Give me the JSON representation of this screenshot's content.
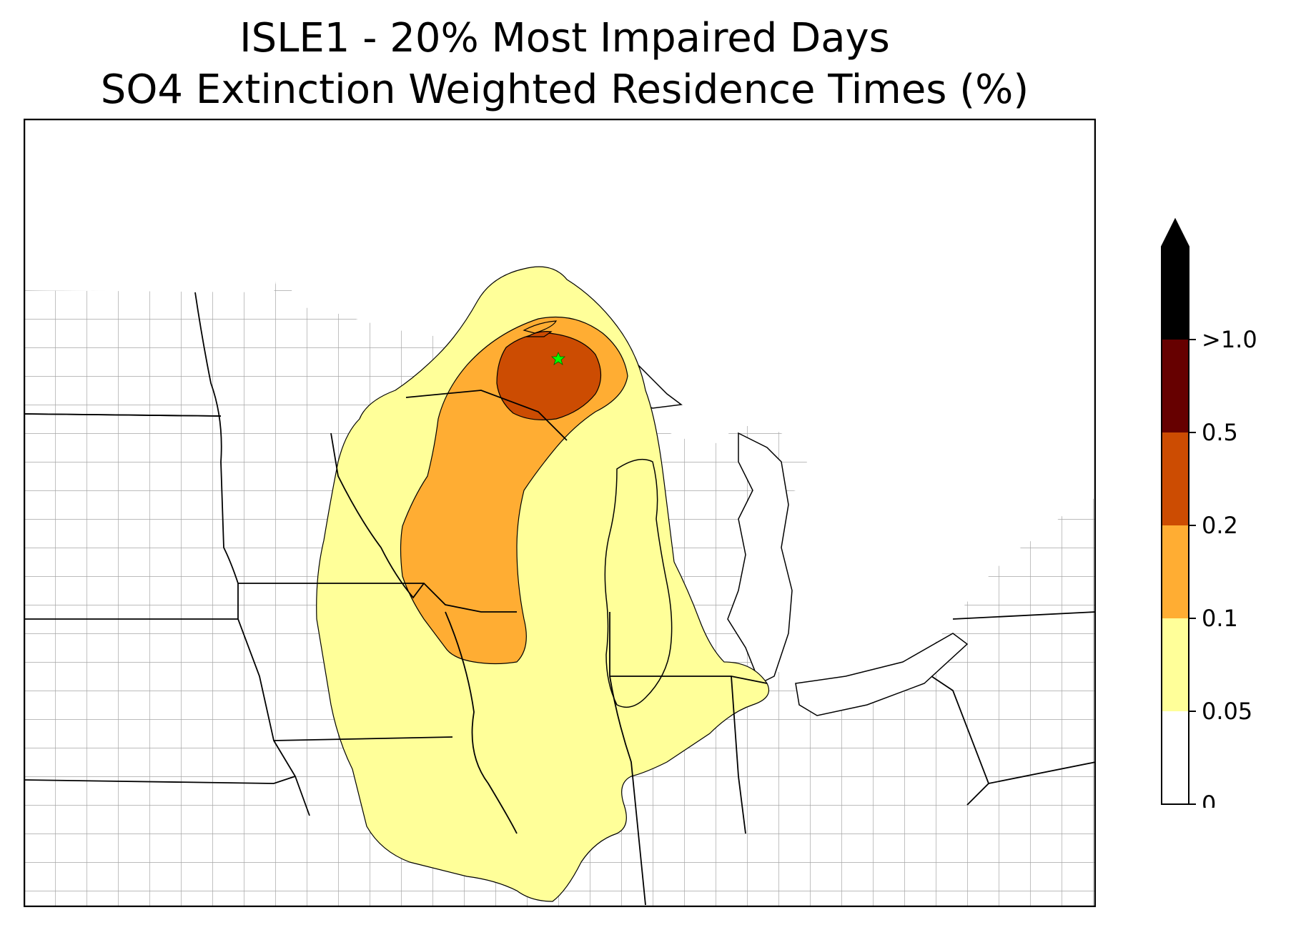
{
  "title": {
    "line1": "ISLE1 - 20% Most Impaired Days",
    "line2": "SO4 Extinction Weighted Residence Times (%)"
  },
  "map": {
    "receptor_marker": "green-star-icon",
    "county_line_color": "#a6a6a6",
    "state_line_color": "#000000"
  },
  "colorbar": {
    "extend": "max",
    "bins": [
      {
        "from": "0",
        "to": "0.05",
        "color": "#ffffff"
      },
      {
        "from": "0.05",
        "to": "0.1",
        "color": "#ffff99"
      },
      {
        "from": "0.1",
        "to": "0.2",
        "color": "#ffad33"
      },
      {
        "from": "0.2",
        "to": "0.5",
        "color": "#cc4c02"
      },
      {
        "from": "0.5",
        "to": "1.0",
        "color": "#660000"
      },
      {
        "from": "1.0",
        "to": "max",
        "color": "#000000"
      }
    ],
    "tick_labels": [
      "0",
      "0.05",
      "0.1",
      "0.2",
      "0.5",
      ">1.0"
    ]
  }
}
